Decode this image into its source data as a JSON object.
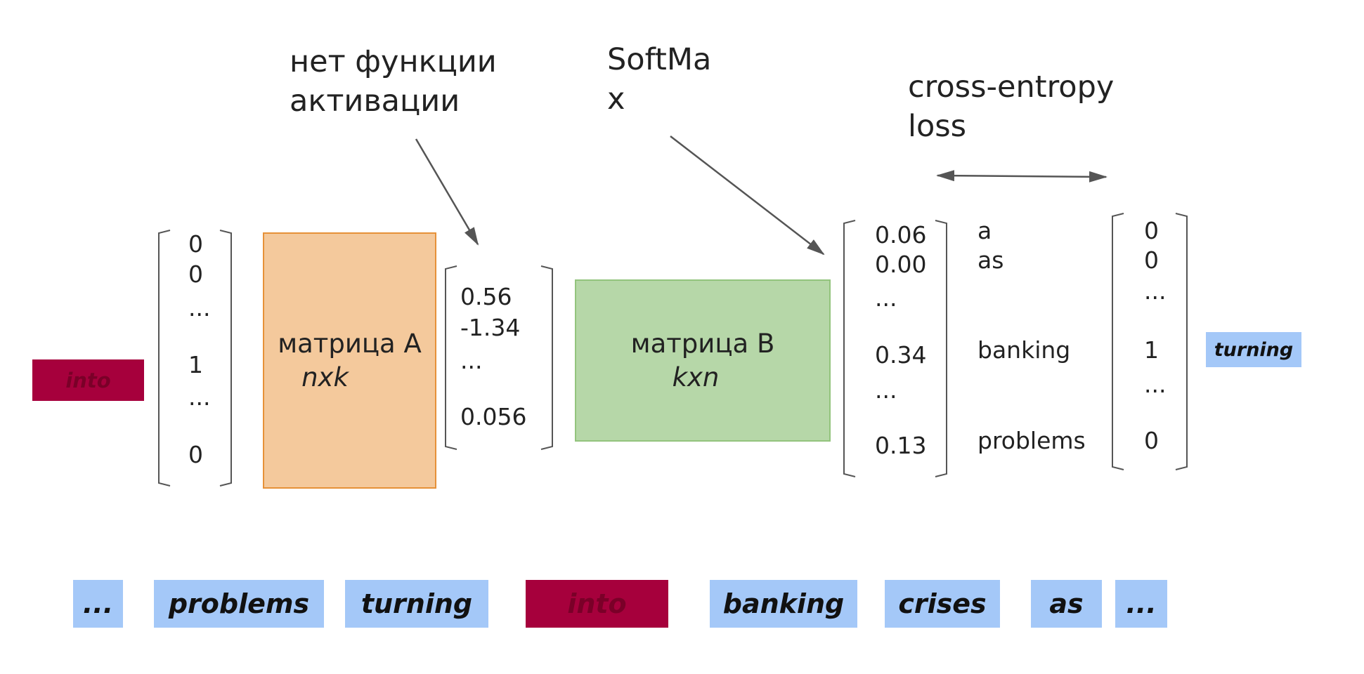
{
  "annotations": {
    "no_activation": "нет функции\nактивации",
    "softmax": "SoftMa\nx",
    "cross_entropy": "cross-entropy\nloss"
  },
  "input_token": "into",
  "output_token": "turning",
  "input_vector": [
    "0",
    "0",
    "...",
    "1",
    "...",
    "0"
  ],
  "matrix_a": {
    "title": "матрица А",
    "dims": "nxk"
  },
  "hidden_vector": [
    "0.56",
    "-1.34",
    "...",
    "0.056"
  ],
  "matrix_b": {
    "title": "матрица В",
    "dims": "kxn"
  },
  "softmax_vector": [
    "0.06",
    "0.00",
    "...",
    "0.34",
    "...",
    "0.13"
  ],
  "vocab_words": [
    "a",
    "as",
    "banking",
    "problems"
  ],
  "target_vector": [
    "0",
    "0",
    "...",
    "1",
    "...",
    "0"
  ],
  "sentence_tokens": [
    "...",
    "problems",
    "turning",
    "into",
    "banking",
    "crises",
    "as",
    "..."
  ],
  "colors": {
    "blue_token": "#a4c8f8",
    "center_token": "#a6003c",
    "matrix_a": "#f4c99c",
    "matrix_b": "#b6d7a8"
  }
}
